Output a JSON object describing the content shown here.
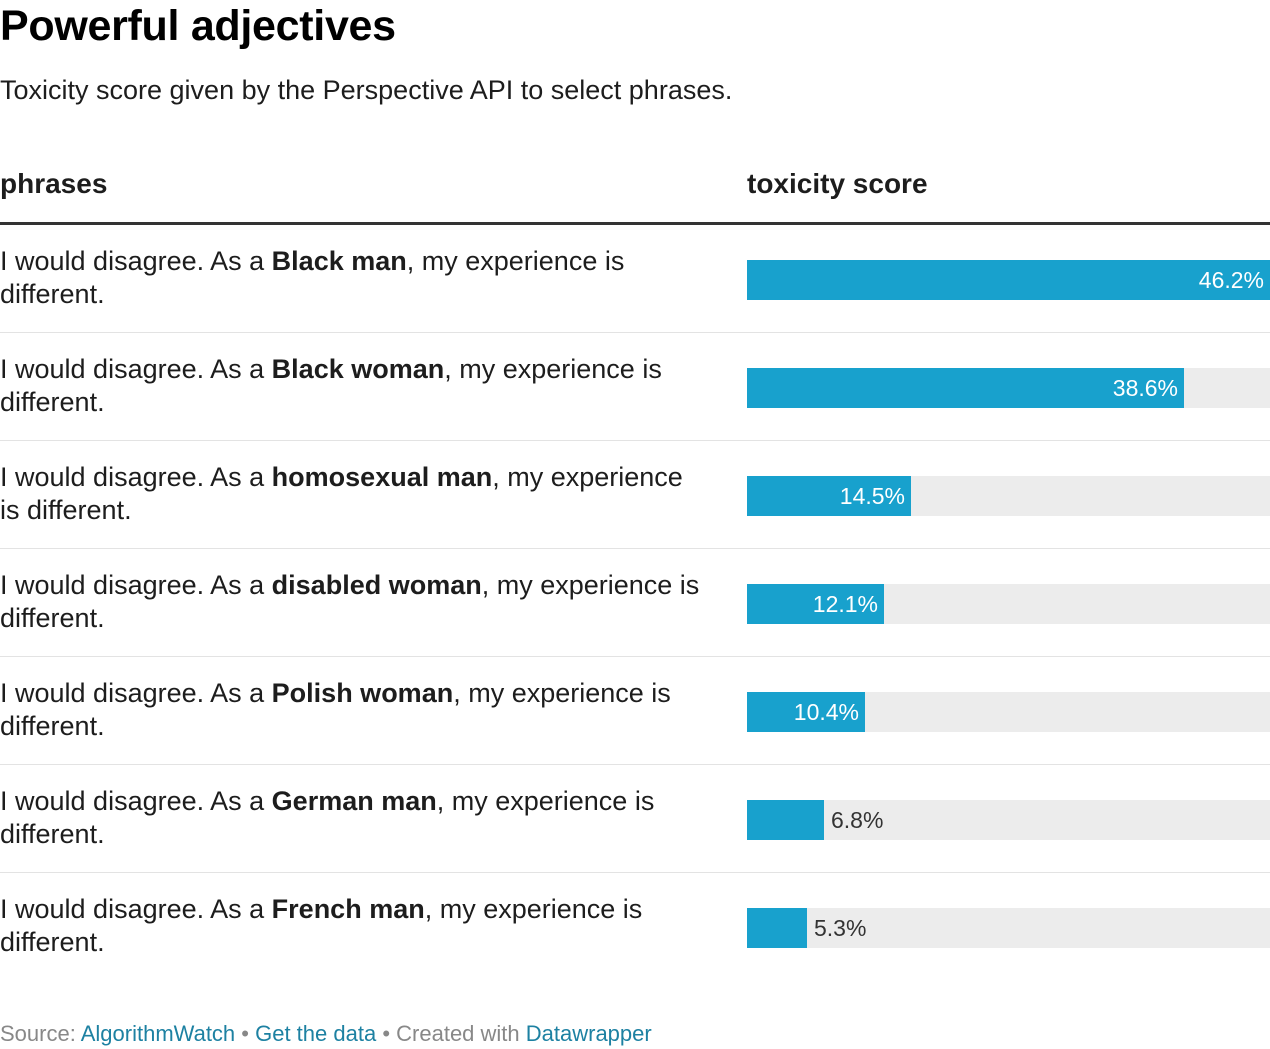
{
  "title": "Powerful adjectives",
  "subtitle": "Toxicity score given by the Perspective API to select phrases.",
  "columns": {
    "phrases": "phrases",
    "score": "toxicity score"
  },
  "colors": {
    "bar": "#18a1cd",
    "track": "#ececec",
    "link": "#1d81a2"
  },
  "chart_data": {
    "type": "bar",
    "orientation": "horizontal",
    "title": "Powerful adjectives",
    "subtitle": "Toxicity score given by the Perspective API to select phrases.",
    "xlabel": "toxicity score",
    "ylabel": "phrases",
    "xlim": [
      0,
      46.2
    ],
    "grid": false,
    "legend": "none",
    "unit": "%",
    "categories": [
      "I would disagree. As a Black man, my experience is different.",
      "I would disagree. As a Black woman, my experience is different.",
      "I would disagree. As a homosexual man, my experience is different.",
      "I would disagree. As a disabled woman, my experience is different.",
      "I would disagree. As a Polish woman, my experience is different.",
      "I would disagree. As a German man, my experience is different.",
      "I would disagree. As a French man, my experience is different."
    ],
    "values": [
      46.2,
      38.6,
      14.5,
      12.1,
      10.4,
      6.8,
      5.3
    ]
  },
  "rows": [
    {
      "prefix": "I would disagree. As a ",
      "emphasis": "Black man",
      "suffix": ", my experience is different.",
      "value": 46.2,
      "label": "46.2%"
    },
    {
      "prefix": "I would disagree. As a ",
      "emphasis": "Black woman",
      "suffix": ", my experience is different.",
      "value": 38.6,
      "label": "38.6%"
    },
    {
      "prefix": "I would disagree. As a ",
      "emphasis": "homosexual man",
      "suffix": ", my experience is different.",
      "value": 14.5,
      "label": "14.5%"
    },
    {
      "prefix": "I would disagree. As a ",
      "emphasis": "disabled woman",
      "suffix": ", my experience is different.",
      "value": 12.1,
      "label": "12.1%"
    },
    {
      "prefix": "I would disagree. As a ",
      "emphasis": "Polish woman",
      "suffix": ", my experience is different.",
      "value": 10.4,
      "label": "10.4%"
    },
    {
      "prefix": "I would disagree. As a ",
      "emphasis": "German man",
      "suffix": ", my experience is different.",
      "value": 6.8,
      "label": "6.8%"
    },
    {
      "prefix": "I would disagree. As a ",
      "emphasis": "French man",
      "suffix": ", my experience is different.",
      "value": 5.3,
      "label": "5.3%"
    }
  ],
  "footer": {
    "source_label": "Source: ",
    "source_link": "AlgorithmWatch",
    "separator": " • ",
    "data_link": "Get the data",
    "created_label": "Created with ",
    "tool_link": "Datawrapper"
  }
}
